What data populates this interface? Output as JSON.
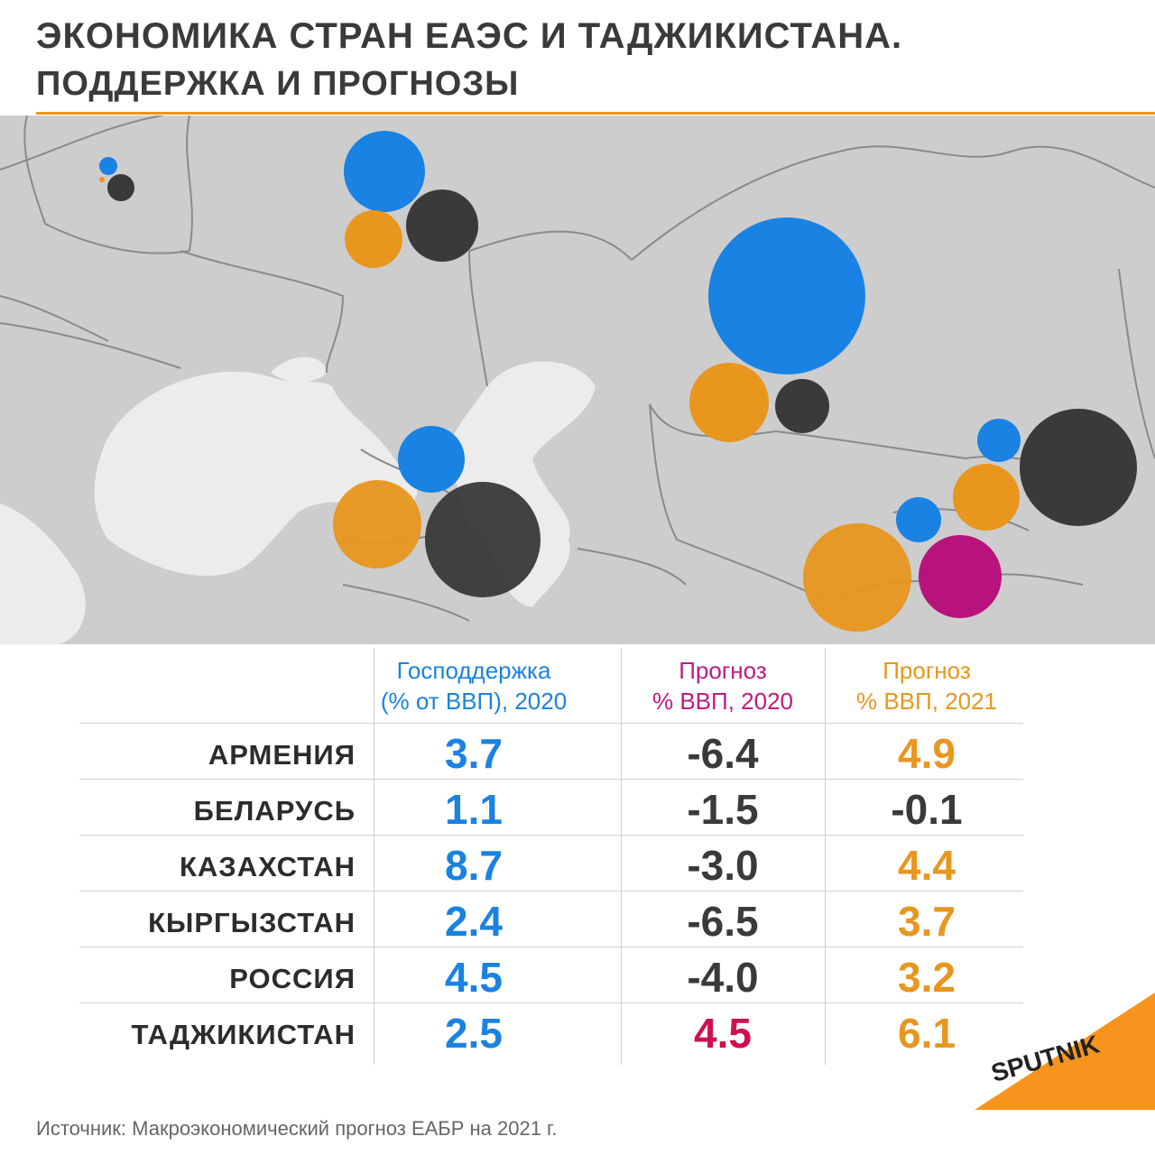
{
  "header": {
    "title": "ЭКОНОМИКА СТРАН ЕАЭС И ТАДЖИКИСТАНА.",
    "subtitle": "ПОДДЕРЖКА И ПРОГНОЗЫ"
  },
  "columns": [
    {
      "line1": "Господдержка",
      "line2": "(% от ВВП), 2020",
      "color": "#1a82e2"
    },
    {
      "line1": "Прогноз",
      "line2": "% ВВП, 2020",
      "color": "#c21a80"
    },
    {
      "line1": "Прогноз",
      "line2": "% ВВП, 2021",
      "color": "#e8961e"
    }
  ],
  "colors": {
    "support": "#1a82e2",
    "forecast2020_positive": "#d0104c",
    "forecast2020_bubble": "#b8127d",
    "forecast2021": "#e8961e",
    "negative": "#3a3a3a"
  },
  "chart_data": {
    "type": "table",
    "categories": [
      "АРМЕНИЯ",
      "БЕЛАРУСЬ",
      "КАЗАХСТАН",
      "КЫРГЫЗСТАН",
      "РОССИЯ",
      "ТАДЖИКИСТАН"
    ],
    "series": [
      {
        "name": "Господдержка (% от ВВП), 2020",
        "values": [
          "3.7",
          "1.1",
          "8.7",
          "2.4",
          "4.5",
          "2.5"
        ]
      },
      {
        "name": "Прогноз % ВВП, 2020",
        "values": [
          "-6.4",
          "-1.5",
          "-3.0",
          "-6.5",
          "-4.0",
          "4.5"
        ]
      },
      {
        "name": "Прогноз % ВВП, 2021",
        "values": [
          "4.9",
          "-0.1",
          "4.4",
          "3.7",
          "3.2",
          "6.1"
        ]
      }
    ]
  },
  "logo": {
    "text": "SPUTNIK",
    "color": "#f7941d"
  },
  "source": "Источник:  Макроэкономический прогноз ЕАБР на 2021 г."
}
